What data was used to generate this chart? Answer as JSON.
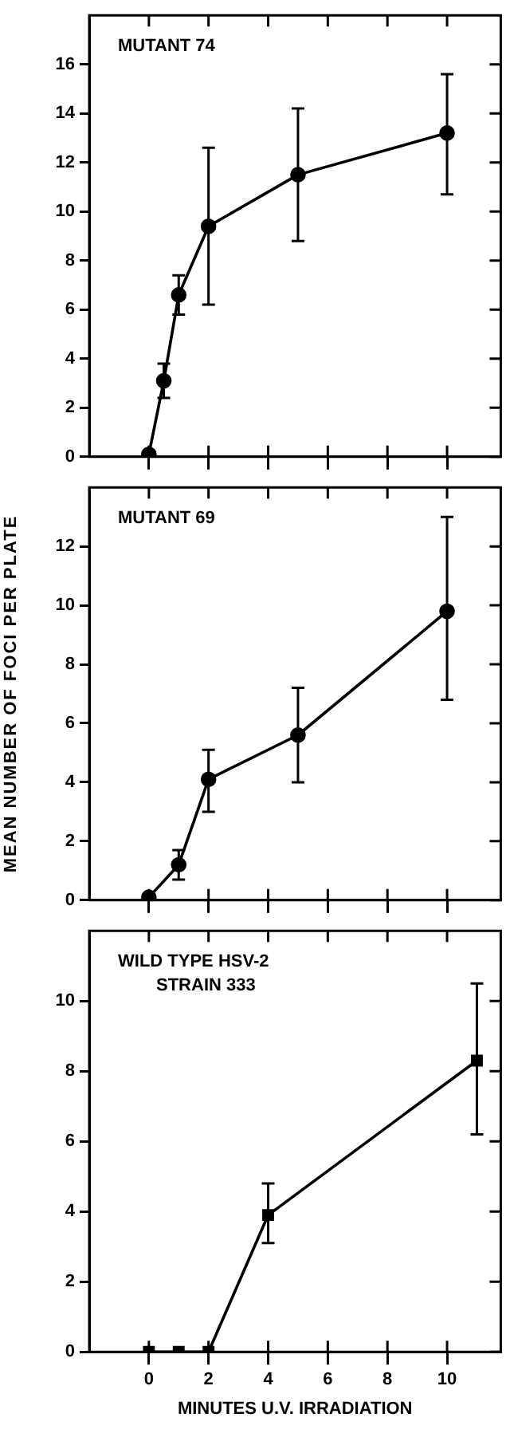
{
  "chart_data": [
    {
      "type": "line",
      "x": [
        0,
        0.5,
        1,
        2,
        5,
        10
      ],
      "xlim": [
        -2,
        11.8
      ],
      "xticks": [
        0,
        2,
        4,
        6,
        8,
        10
      ],
      "ylim": [
        0,
        18
      ],
      "yticks": [
        0,
        2,
        4,
        6,
        8,
        10,
        12,
        14,
        16
      ],
      "tick_labels": "y",
      "marker": "circle",
      "grid": false,
      "annotations": [
        "MUTANT 74"
      ],
      "series": [
        {
          "color": "#000000",
          "values": [
            0.1,
            3.1,
            6.6,
            9.4,
            11.5,
            13.2
          ],
          "errors": [
            null,
            [
              2.4,
              3.8
            ],
            [
              5.8,
              7.4
            ],
            [
              6.2,
              12.6
            ],
            [
              8.8,
              14.2
            ],
            [
              10.7,
              15.6
            ]
          ]
        }
      ]
    },
    {
      "type": "line",
      "x": [
        0,
        1,
        2,
        5,
        10
      ],
      "xlim": [
        -2,
        11.8
      ],
      "xticks": [
        0,
        2,
        4,
        6,
        8,
        10
      ],
      "ylim": [
        0,
        14
      ],
      "yticks": [
        0,
        2,
        4,
        6,
        8,
        10,
        12
      ],
      "tick_labels": "y",
      "marker": "circle",
      "grid": false,
      "ylabel": "MEAN NUMBER OF FOCI PER PLATE",
      "annotations": [
        "MUTANT 69"
      ],
      "series": [
        {
          "color": "#000000",
          "values": [
            0.1,
            1.2,
            4.1,
            5.6,
            9.8
          ],
          "errors": [
            null,
            [
              0.7,
              1.7
            ],
            [
              3.0,
              5.1
            ],
            [
              4.0,
              7.2
            ],
            [
              6.8,
              13.0
            ]
          ]
        }
      ]
    },
    {
      "type": "line",
      "x": [
        0,
        1,
        2,
        4,
        11
      ],
      "xlim": [
        -2,
        11.8
      ],
      "xticks": [
        0,
        2,
        4,
        6,
        8,
        10
      ],
      "ylim": [
        0,
        12
      ],
      "yticks": [
        0,
        2,
        4,
        6,
        8,
        10
      ],
      "marker": "square",
      "grid": false,
      "xlabel": "MINUTES U.V. IRRADIATION",
      "annotations": [
        "WILD TYPE HSV-2\nSTRAIN 333"
      ],
      "series": [
        {
          "color": "#000000",
          "values": [
            0,
            0,
            0,
            3.9,
            8.3
          ],
          "errors": [
            null,
            null,
            null,
            [
              3.1,
              4.8
            ],
            [
              6.2,
              10.5
            ]
          ]
        }
      ]
    }
  ]
}
